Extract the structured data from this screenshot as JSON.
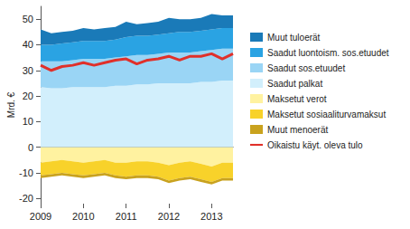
{
  "chart_data": {
    "type": "area",
    "y_label": "Mrd. €",
    "stacked": true,
    "grid": false,
    "legend": "right",
    "categories": [
      "2009",
      null,
      null,
      null,
      "2010",
      null,
      null,
      null,
      "2011",
      null,
      null,
      null,
      "2012",
      null,
      null,
      null,
      "2013",
      null,
      null
    ],
    "ylim": [
      -22,
      55
    ],
    "yticks": [
      -20,
      -10,
      0,
      10,
      20,
      30,
      40,
      50
    ],
    "series": [
      {
        "name": "Muut tuloerät",
        "color": "#1a7ab8",
        "type": "area",
        "values": [
          6,
          4.5,
          4.5,
          4.5,
          5,
          4.5,
          5,
          5,
          6,
          4.5,
          5,
          5,
          6,
          5,
          5,
          5,
          6,
          5,
          5
        ]
      },
      {
        "name": "Saadut luontoism. sos.etuudet",
        "color": "#2aa3e3",
        "type": "area",
        "values": [
          6.5,
          6.5,
          7,
          7,
          7,
          7,
          7,
          7,
          7.5,
          7.5,
          7.5,
          7.5,
          7.5,
          8,
          8,
          8,
          8,
          8,
          8
        ]
      },
      {
        "name": "Saadut sos.etuudet",
        "color": "#9ad5f5",
        "type": "area",
        "values": [
          10,
          10.5,
          10.5,
          10.5,
          11,
          11,
          11,
          11,
          11.5,
          11.5,
          11.5,
          11.5,
          12,
          12,
          12,
          12,
          12.5,
          12.5,
          12.5
        ]
      },
      {
        "name": "Saadut palkat",
        "color": "#d2effc",
        "type": "area",
        "values": [
          23.5,
          23,
          23,
          23.5,
          23.5,
          23.5,
          23.5,
          24,
          24,
          24.5,
          24.5,
          25,
          25,
          25,
          25,
          25.5,
          25.5,
          26,
          26
        ]
      },
      {
        "name": "Maksetut verot",
        "color": "#fff2a0",
        "type": "area",
        "values": [
          -6,
          -5.5,
          -5,
          -5.5,
          -6,
          -5.5,
          -5,
          -6,
          -6,
          -5.5,
          -5.5,
          -6,
          -7,
          -6,
          -5.5,
          -6.5,
          -7.5,
          -6,
          -6
        ]
      },
      {
        "name": "Maksetut sosiaaliturvamaksut",
        "color": "#f8d22a",
        "type": "area",
        "values": [
          -5,
          -5,
          -5,
          -5,
          -5,
          -5,
          -5,
          -5,
          -5.5,
          -5.5,
          -5.5,
          -5.5,
          -6,
          -6,
          -6,
          -6,
          -6,
          -6,
          -6
        ]
      },
      {
        "name": "Muut menoerät",
        "color": "#c9a21e",
        "type": "area",
        "values": [
          -1,
          -1,
          -1,
          -1,
          -1,
          -1,
          -1,
          -1,
          -1,
          -1,
          -1,
          -1,
          -1,
          -1,
          -1,
          -1,
          -1,
          -1,
          -1
        ]
      },
      {
        "name": "Oikaistu käyt. oleva tulo",
        "color": "#e0302a",
        "type": "line",
        "values": [
          32,
          30,
          31.5,
          32,
          33,
          32,
          33,
          34,
          34.5,
          32.5,
          34,
          34.5,
          35.5,
          34,
          35.5,
          35.5,
          36.5,
          34.5,
          36.5
        ]
      }
    ]
  }
}
